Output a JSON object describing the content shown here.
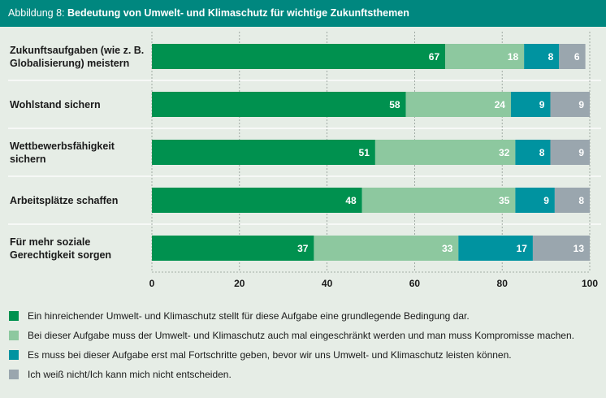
{
  "header": {
    "prefix": "Abbildung 8: ",
    "title": "Bedeutung von Umwelt- und Klimaschutz für wichtige Zukunftsthemen"
  },
  "colors": {
    "header_bg": "#00877f",
    "background": "#e6ede6",
    "series": [
      "#00914f",
      "#8dc89f",
      "#0093a0",
      "#9aa6ae"
    ]
  },
  "chart_data": {
    "type": "bar",
    "orientation": "horizontal",
    "stacked": true,
    "title": "Bedeutung von Umwelt- und Klimaschutz für wichtige Zukunftsthemen",
    "categories": [
      [
        "Zukunftsaufgaben (wie z. B.",
        "Globalisierung) meistern"
      ],
      [
        "Wohlstand sichern"
      ],
      [
        "Wettbewerbsfähigkeit",
        "sichern"
      ],
      [
        "Arbeitsplätze schaffen"
      ],
      [
        "Für mehr soziale",
        "Gerechtigkeit sorgen"
      ]
    ],
    "series": [
      {
        "name": "Ein hinreichender Umwelt- und Klimaschutz stellt für diese Aufgabe eine grundlegende Bedingung dar.",
        "values": [
          67,
          58,
          51,
          48,
          37
        ]
      },
      {
        "name": "Bei dieser Aufgabe muss der Umwelt- und Klimaschutz auch mal eingeschränkt werden und man muss Kompromisse machen.",
        "values": [
          18,
          24,
          32,
          35,
          33
        ]
      },
      {
        "name": "Es muss bei dieser Aufgabe erst mal Fortschritte geben, bevor wir uns Umwelt- und Klimaschutz leisten können.",
        "values": [
          8,
          9,
          8,
          9,
          17
        ]
      },
      {
        "name": "Ich weiß nicht/Ich kann mich nicht entscheiden.",
        "values": [
          6,
          9,
          9,
          8,
          13
        ]
      }
    ],
    "xlim": [
      0,
      100
    ],
    "xticks": [
      0,
      20,
      40,
      60,
      80,
      100
    ],
    "grid": true,
    "legend": "bottom"
  }
}
